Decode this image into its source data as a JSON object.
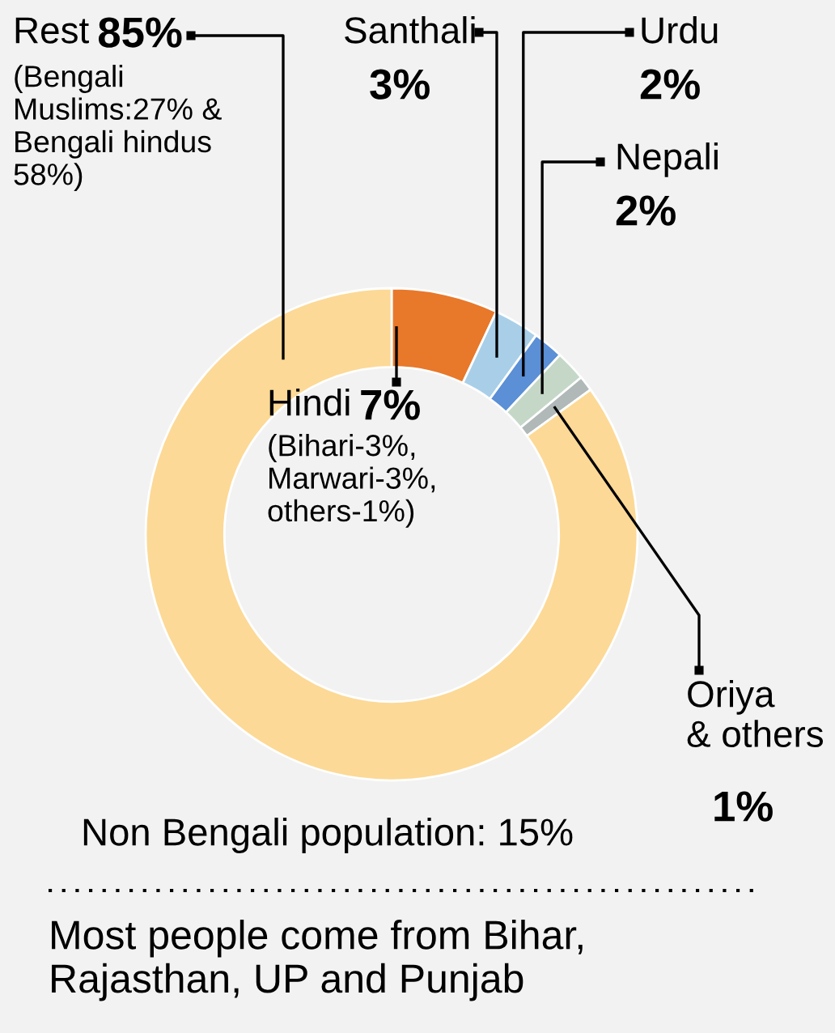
{
  "chart_data": {
    "type": "donut",
    "categories": [
      "Hindi",
      "Santhali",
      "Urdu",
      "Nepali",
      "Oriya\n& others",
      "Rest"
    ],
    "values": [
      7,
      3,
      2,
      2,
      1,
      85
    ],
    "colors": [
      "#e8782a",
      "#a9cfe8",
      "#5b8fd6",
      "#c5d8c8",
      "#b0b8b8",
      "#fcd996"
    ],
    "value_labels": [
      "7%",
      "3%",
      "2%",
      "2%",
      "1%",
      "85%"
    ],
    "annotations": [
      "(Bengali\nMuslims:27% &\nBengali hindus\n58%)",
      "(Bihari-3%,\nMarwari-3%,\nothers-1%)",
      "Non Bengali population: 15%",
      "Most people come from Bihar,\nRajasthan, UP and Punjab"
    ],
    "legend": false
  }
}
